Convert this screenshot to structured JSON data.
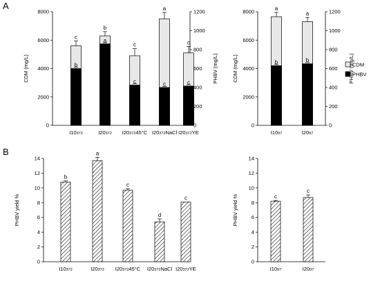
{
  "panel_labels": [
    "A",
    "B"
  ],
  "colors": {
    "cdm": "#e8e8e8",
    "phbv": "#000000",
    "axis": "#000000",
    "hatch": "#000000"
  },
  "chart_data": [
    {
      "id": "A-left",
      "type": "bar",
      "categories": [
        "I10372",
        "I20372",
        "I20372 45°C",
        "I20372 NaCl",
        "I20372 YE"
      ],
      "tick_labels": [
        {
          "main": "I10",
          "sub": "372",
          "tail": ""
        },
        {
          "main": "I20",
          "sub": "372",
          "tail": ""
        },
        {
          "main": "I20",
          "sub": "372",
          "tail": "45°C"
        },
        {
          "main": "I20",
          "sub": "372",
          "tail": "NaCl"
        },
        {
          "main": "I20",
          "sub": "372",
          "tail": "YE"
        }
      ],
      "ylabel": "CDM (mg/L)",
      "y2label": "PHBV (mg/L)",
      "ylim": [
        0,
        8000
      ],
      "yticks": [
        0,
        2000,
        4000,
        6000,
        8000
      ],
      "y2lim": [
        0,
        1200
      ],
      "y2ticks": [
        0,
        200,
        400,
        600,
        800,
        1000,
        1200
      ],
      "series": [
        {
          "name": "CDM",
          "axis": "left",
          "values": [
            5600,
            6300,
            4900,
            7500,
            5100
          ],
          "errors": [
            350,
            300,
            500,
            450,
            450
          ],
          "letters": [
            "c",
            "b",
            "c",
            "a",
            "c"
          ]
        },
        {
          "name": "PHBV",
          "axis": "right",
          "values": [
            600,
            860,
            425,
            400,
            415
          ],
          "errors": [
            15,
            12,
            15,
            12,
            15
          ],
          "letters": [
            "b",
            "a",
            "c",
            "c",
            "c"
          ]
        }
      ]
    },
    {
      "id": "A-right",
      "type": "bar",
      "categories": [
        "I1097",
        "I2097"
      ],
      "tick_labels": [
        {
          "main": "I10",
          "sub": "97",
          "tail": ""
        },
        {
          "main": "I20",
          "sub": "97",
          "tail": ""
        }
      ],
      "ylabel": "CDM (mg/L)",
      "y2label": "PHBV (mg/L)",
      "ylim": [
        0,
        8000
      ],
      "yticks": [
        0,
        2000,
        4000,
        6000,
        8000
      ],
      "y2lim": [
        0,
        1200
      ],
      "y2ticks": [
        0,
        200,
        400,
        600,
        800,
        1000,
        1200
      ],
      "legend": [
        "CDM",
        "PHBV"
      ],
      "series": [
        {
          "name": "CDM",
          "axis": "left",
          "values": [
            7650,
            7300
          ],
          "errors": [
            300,
            300
          ],
          "letters": [
            "a",
            "a"
          ]
        },
        {
          "name": "PHBV",
          "axis": "right",
          "values": [
            630,
            650
          ],
          "errors": [
            12,
            12
          ],
          "letters": [
            "b",
            "b"
          ]
        }
      ]
    },
    {
      "id": "B-left",
      "type": "bar",
      "categories": [
        "I10372",
        "I20372",
        "I20372 45°C",
        "I20372 NaCl",
        "I20372 YE"
      ],
      "tick_labels": [
        {
          "main": "I10",
          "sub": "372",
          "tail": ""
        },
        {
          "main": "I20",
          "sub": "372",
          "tail": ""
        },
        {
          "main": "I20",
          "sub": "372",
          "tail": "45°C"
        },
        {
          "main": "I20",
          "sub": "372",
          "tail": "NaCl"
        },
        {
          "main": "I20",
          "sub": "372",
          "tail": "YE"
        }
      ],
      "ylabel": "PHBV yield %",
      "ylim": [
        0,
        14
      ],
      "yticks": [
        0,
        2,
        4,
        6,
        8,
        10,
        12,
        14
      ],
      "series": [
        {
          "name": "PHBV yield",
          "values": [
            10.8,
            13.7,
            9.7,
            5.4,
            8.1
          ],
          "errors": [
            0.15,
            0.45,
            0.2,
            0.4,
            0.0
          ],
          "letters": [
            "b",
            "a",
            "c",
            "d",
            "c"
          ]
        }
      ]
    },
    {
      "id": "B-right",
      "type": "bar",
      "categories": [
        "I1097",
        "I2097"
      ],
      "tick_labels": [
        {
          "main": "I10",
          "sub": "97",
          "tail": ""
        },
        {
          "main": "I20",
          "sub": "97",
          "tail": ""
        }
      ],
      "ylabel": "PHBV yield %",
      "ylim": [
        0,
        14
      ],
      "yticks": [
        0,
        2,
        4,
        6,
        8,
        10,
        12,
        14
      ],
      "series": [
        {
          "name": "PHBV yield",
          "values": [
            8.2,
            8.7
          ],
          "errors": [
            0.1,
            0.35
          ],
          "letters": [
            "c",
            "c"
          ]
        }
      ]
    }
  ]
}
